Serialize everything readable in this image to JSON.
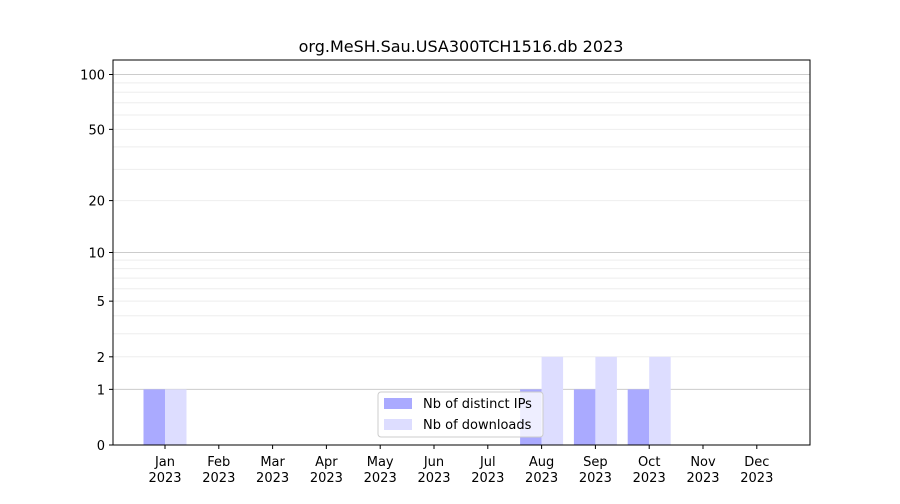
{
  "chart_data": {
    "type": "bar",
    "title": "org.MeSH.Sau.USA300TCH1516.db 2023",
    "xlabel": "",
    "ylabel": "",
    "categories": [
      [
        "Jan",
        "2023"
      ],
      [
        "Feb",
        "2023"
      ],
      [
        "Mar",
        "2023"
      ],
      [
        "Apr",
        "2023"
      ],
      [
        "May",
        "2023"
      ],
      [
        "Jun",
        "2023"
      ],
      [
        "Jul",
        "2023"
      ],
      [
        "Aug",
        "2023"
      ],
      [
        "Sep",
        "2023"
      ],
      [
        "Oct",
        "2023"
      ],
      [
        "Nov",
        "2023"
      ],
      [
        "Dec",
        "2023"
      ]
    ],
    "series": [
      {
        "name": "Nb of distinct IPs",
        "color": "#aaaaff",
        "values": [
          1,
          0,
          0,
          0,
          0,
          0,
          0,
          1,
          1,
          1,
          0,
          0
        ]
      },
      {
        "name": "Nb of downloads",
        "color": "#ddddff",
        "values": [
          1,
          0,
          0,
          0,
          0,
          0,
          0,
          2,
          2,
          2,
          0,
          0
        ]
      }
    ],
    "yscale": "log(1+y)",
    "ylim": [
      0,
      120
    ],
    "yticks": [
      0,
      1,
      2,
      5,
      10,
      20,
      50,
      100
    ],
    "grid": "horizontal",
    "legend_position": "bottom-center"
  }
}
